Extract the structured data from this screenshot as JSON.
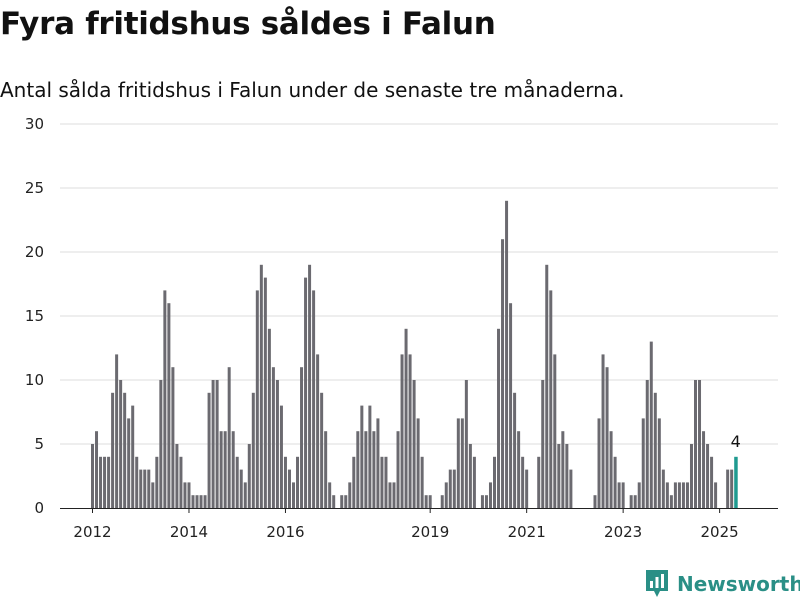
{
  "title": "Fyra fritidshus såldes i Falun",
  "subtitle": "Antal sålda fritidshus i Falun under de senaste tre månaderna.",
  "brand": {
    "name": "Newsworthy",
    "icon": "newsworthy-logo-icon",
    "color": "#2a8f86"
  },
  "chart_data": {
    "type": "bar",
    "title": "Fyra fritidshus såldes i Falun",
    "subtitle": "Antal sålda fritidshus i Falun under de senaste tre månaderna.",
    "xlabel": "",
    "ylabel": "",
    "ylim": [
      0,
      30
    ],
    "yticks": [
      0,
      5,
      10,
      15,
      20,
      25,
      30
    ],
    "xtick_labels": [
      "2012",
      "2014",
      "2016",
      "2019",
      "2021",
      "2023",
      "2025"
    ],
    "grid": true,
    "legend": "none",
    "colors": {
      "bar": "#6b6a70",
      "highlight": "#1f9a90",
      "grid": "#dddddd"
    },
    "highlight_label": "4",
    "series": [
      {
        "values": [
          5,
          6,
          4,
          4,
          4,
          9,
          12,
          10,
          9,
          7,
          8,
          4,
          3,
          3,
          3,
          2,
          4,
          10,
          17,
          16,
          11,
          5,
          4,
          2,
          2,
          1,
          1,
          1,
          1,
          9,
          10,
          10,
          6,
          6,
          11,
          6,
          4,
          3,
          2,
          5,
          9,
          17,
          19,
          18,
          14,
          11,
          10,
          8,
          4,
          3,
          2,
          4,
          11,
          18,
          19,
          17,
          12,
          9,
          6,
          2,
          1,
          0,
          1,
          1,
          2,
          4,
          6,
          8,
          6,
          8,
          6,
          7,
          4,
          4,
          2,
          2,
          6,
          12,
          14,
          12,
          10,
          7,
          4,
          1,
          1,
          0,
          0,
          1,
          2,
          3,
          3,
          7,
          7,
          10,
          5,
          4,
          0,
          1,
          1,
          2,
          4,
          14,
          21,
          24,
          16,
          9,
          6,
          4,
          3,
          0,
          0,
          4,
          10,
          19,
          17,
          12,
          5,
          6,
          5,
          3,
          0,
          0,
          0,
          0,
          0,
          1,
          7,
          12,
          11,
          6,
          4,
          2,
          2,
          0,
          1,
          1,
          2,
          7,
          10,
          13,
          9,
          7,
          3,
          2,
          1,
          2,
          2,
          2,
          2,
          5,
          10,
          10,
          6,
          5,
          4,
          2,
          0,
          0,
          3,
          3,
          4
        ]
      }
    ]
  }
}
